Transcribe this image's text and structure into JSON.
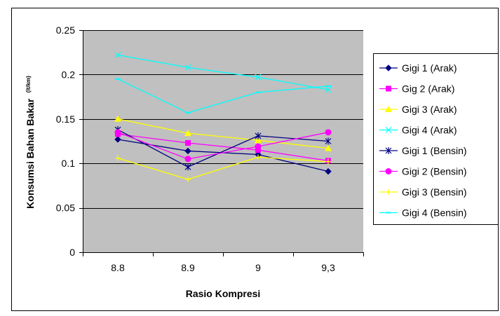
{
  "chart_data": {
    "type": "line",
    "title": "",
    "xlabel": "Rasio Kompresi",
    "ylabel": "Konsumsi Bahan Bakar",
    "ylabel_unit": "(lt/km)",
    "categories": [
      "8.8",
      "8.9",
      "9",
      "9,3"
    ],
    "ylim": [
      0,
      0.25
    ],
    "yticks": [
      "0",
      "0.05",
      "0.1",
      "0.15",
      "0.2",
      "0.25"
    ],
    "ytick_values": [
      0,
      0.05,
      0.1,
      0.15,
      0.2,
      0.25
    ],
    "grid": "horizontal",
    "plot_background": "#c0c0c0",
    "legend_position": "right",
    "series": [
      {
        "name": "Gigi 1 (Arak)",
        "values": [
          0.127,
          0.114,
          0.11,
          0.091
        ],
        "color": "#000080",
        "marker": "diamond"
      },
      {
        "name": "Gig 2 (Arak)",
        "values": [
          0.133,
          0.123,
          0.115,
          0.103
        ],
        "color": "#ff00ff",
        "marker": "square"
      },
      {
        "name": "Gigi 3 (Arak)",
        "values": [
          0.15,
          0.134,
          0.126,
          0.117
        ],
        "color": "#ffff00",
        "marker": "triangle"
      },
      {
        "name": "Gigi 4 (Arak)",
        "values": [
          0.222,
          0.208,
          0.197,
          0.183
        ],
        "color": "#00ffff",
        "marker": "x"
      },
      {
        "name": "Gigi 1 (Bensin)",
        "values": [
          0.138,
          0.096,
          0.131,
          0.125
        ],
        "color": "#000080",
        "marker": "star"
      },
      {
        "name": "Gigi 2 (Bensin)",
        "values": [
          0.135,
          0.105,
          0.119,
          0.135
        ],
        "color": "#ff00ff",
        "marker": "circle"
      },
      {
        "name": "Gigi 3 (Bensin)",
        "values": [
          0.106,
          0.082,
          0.107,
          0.102
        ],
        "color": "#ffff00",
        "marker": "plus"
      },
      {
        "name": "Gigi 4 (Bensin)",
        "values": [
          0.195,
          0.157,
          0.18,
          0.187
        ],
        "color": "#00ffff",
        "marker": "dash"
      }
    ]
  }
}
